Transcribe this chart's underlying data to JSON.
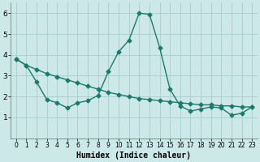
{
  "xlabel": "Humidex (Indice chaleur)",
  "background_color": "#cce8e8",
  "grid_color": "#aacccc",
  "line_color": "#1a7a6e",
  "xlim": [
    -0.5,
    23.5
  ],
  "ylim": [
    0,
    6.5
  ],
  "yticks": [
    1,
    2,
    3,
    4,
    5,
    6
  ],
  "xticks": [
    0,
    1,
    2,
    3,
    4,
    5,
    6,
    7,
    8,
    9,
    10,
    11,
    12,
    13,
    14,
    15,
    16,
    17,
    18,
    19,
    20,
    21,
    22,
    23
  ],
  "line1_x": [
    0,
    1,
    2,
    3,
    4,
    5,
    6,
    7,
    8,
    9,
    10,
    11,
    12,
    13,
    14,
    15,
    16,
    17,
    18,
    19,
    20,
    21,
    22,
    23
  ],
  "line1_y": [
    3.8,
    3.5,
    3.3,
    3.1,
    2.95,
    2.8,
    2.65,
    2.5,
    2.35,
    2.2,
    2.1,
    2.0,
    1.9,
    1.85,
    1.8,
    1.75,
    1.7,
    1.65,
    1.6,
    1.6,
    1.55,
    1.55,
    1.5,
    1.5
  ],
  "line2_x": [
    0,
    1,
    2,
    3,
    4,
    5,
    6,
    7,
    8,
    9,
    10,
    11,
    12,
    13,
    14,
    15,
    16,
    17,
    18,
    19,
    20,
    21,
    22,
    23
  ],
  "line2_y": [
    3.8,
    3.5,
    2.7,
    1.85,
    1.7,
    1.45,
    1.7,
    1.8,
    2.05,
    3.2,
    4.15,
    4.7,
    6.0,
    5.95,
    4.35,
    2.35,
    1.55,
    1.3,
    1.4,
    1.5,
    1.45,
    1.1,
    1.2,
    1.5
  ],
  "marker": "D",
  "markersize": 2.5,
  "linewidth": 1.0,
  "tick_fontsize_x": 5.5,
  "tick_fontsize_y": 6.5,
  "xlabel_fontsize": 7.0
}
